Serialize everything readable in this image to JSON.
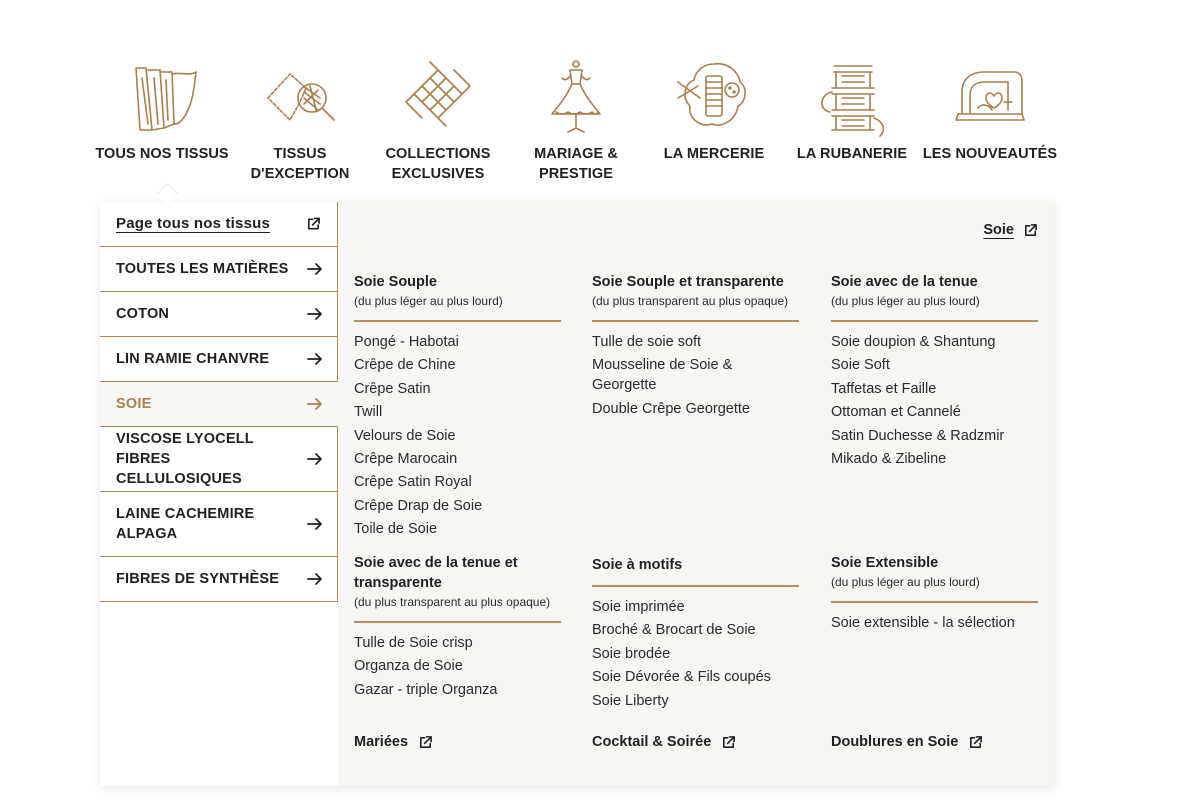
{
  "nav": {
    "items": [
      {
        "label": "TOUS NOS TISSUS",
        "icon": "fabric-rolls-icon"
      },
      {
        "label": "TISSUS D'EXCEPTION",
        "icon": "fabric-magnifier-icon"
      },
      {
        "label": "COLLECTIONS EXCLUSIVES",
        "icon": "woven-knot-icon"
      },
      {
        "label": "MARIAGE & PRESTIGE",
        "icon": "wedding-dress-icon"
      },
      {
        "label": "LA MERCERIE",
        "icon": "thread-spool-button-icon"
      },
      {
        "label": "LA RUBANERIE",
        "icon": "ribbon-spools-icon"
      },
      {
        "label": "LES NOUVEAUTÉS",
        "icon": "sewing-machine-icon"
      }
    ],
    "active_index": 0
  },
  "sidebar": {
    "items": [
      {
        "label": "Page tous nos tissus",
        "icon": "external-link-icon"
      },
      {
        "label": "TOUTES LES MATIÈRES",
        "icon": "arrow-right-icon"
      },
      {
        "label": "COTON",
        "icon": "arrow-right-icon"
      },
      {
        "label": "LIN RAMIE CHANVRE",
        "icon": "arrow-right-icon"
      },
      {
        "label": "SOIE",
        "icon": "arrow-right-icon"
      },
      {
        "label": "VISCOSE LYOCELL FIBRES CELLULOSIQUES",
        "icon": "arrow-right-icon"
      },
      {
        "label": "LAINE CACHEMIRE ALPAGA",
        "icon": "arrow-right-icon"
      },
      {
        "label": "FIBRES DE SYNTHÈSE",
        "icon": "arrow-right-icon"
      }
    ],
    "active_index": 4
  },
  "content": {
    "top_link": "Soie",
    "columns": [
      {
        "title": "Soie Souple",
        "subtitle": "(du plus léger au plus lourd)",
        "items": [
          "Pongé - Habotai",
          "Crêpe de Chine",
          "Crêpe Satin",
          "Twill",
          "Velours de Soie",
          "Crêpe Marocain",
          "Crêpe Satin Royal",
          "Crêpe Drap de Soie",
          "Toile de Soie"
        ]
      },
      {
        "title": "Soie Souple et transparente",
        "subtitle": "(du plus transparent au plus opaque)",
        "items": [
          "Tulle de soie soft",
          "Mousseline de Soie & Georgette",
          "Double Crêpe Georgette"
        ]
      },
      {
        "title": "Soie avec de la tenue",
        "subtitle": "(du plus léger au plus lourd)",
        "items": [
          "Soie doupion & Shantung",
          "Soie Soft",
          "Taffetas et Faille",
          "Ottoman et Cannelé",
          "Satin Duchesse & Radzmir",
          "Mikado & Zibeline"
        ]
      },
      {
        "title": "Soie avec de la tenue et transparente",
        "subtitle": "(du plus transparent au plus opaque)",
        "items": [
          "Tulle de Soie crisp",
          "Organza de Soie",
          "Gazar - triple Organza"
        ]
      },
      {
        "title": "Soie à motifs",
        "subtitle": "",
        "items": [
          "Soie imprimée",
          "Broché & Brocart de Soie",
          "Soie brodée",
          "Soie Dévorée & Fils coupés",
          "Soie Liberty"
        ]
      },
      {
        "title": "Soie Extensible",
        "subtitle": "(du plus léger au plus lourd)",
        "items": [
          "Soie extensible - la sélection"
        ]
      }
    ],
    "footer_links": [
      "Mariées",
      "Cocktail & Soirée",
      "Doublures en Soie"
    ]
  },
  "colors": {
    "accent": "#b28b5b",
    "active_text": "#a97f4c",
    "panel_bg": "#f8f6f3",
    "text": "#1f1f24"
  }
}
